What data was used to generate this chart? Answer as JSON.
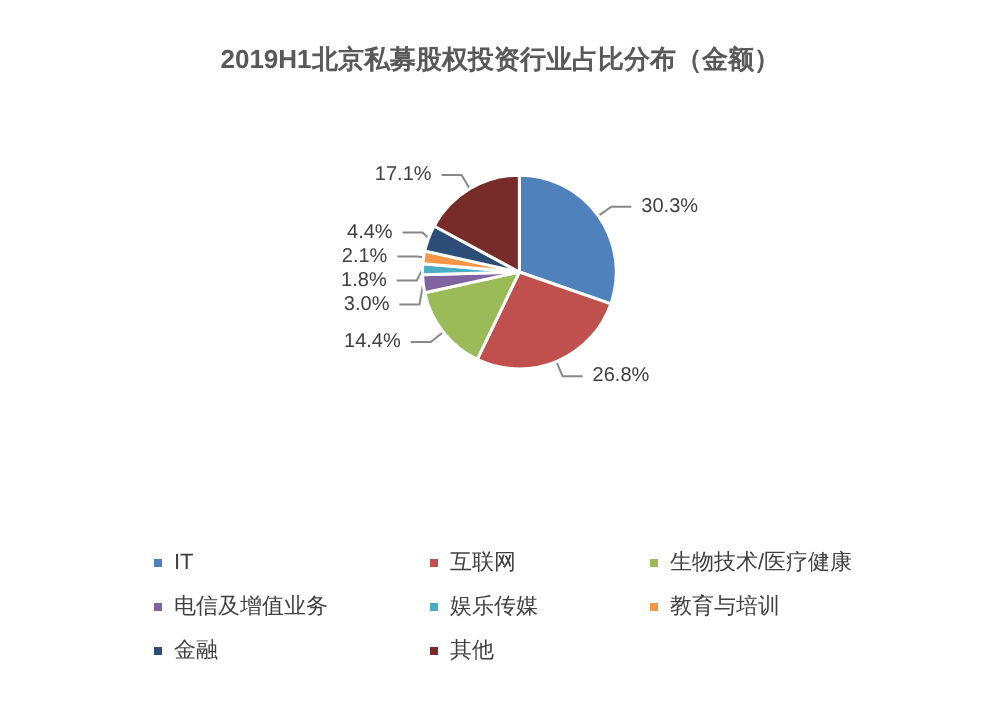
{
  "chart_data": {
    "type": "pie",
    "title": "2019H1北京私募股权投资行业占比分布（金额）",
    "categories": [
      "IT",
      "互联网",
      "生物技术/医疗健康",
      "电信及增值业务",
      "娱乐传媒",
      "教育与培训",
      "金融",
      "其他"
    ],
    "values": [
      30.3,
      26.8,
      14.4,
      3.0,
      1.8,
      2.1,
      4.4,
      17.1
    ],
    "value_labels": [
      "30.3%",
      "26.8%",
      "14.4%",
      "3.0%",
      "1.8%",
      "2.1%",
      "4.4%",
      "17.1%"
    ],
    "colors": [
      "#4f81bd",
      "#c0504d",
      "#9bbb59",
      "#8064a2",
      "#4bacc6",
      "#f79646",
      "#2c4d75",
      "#772c2a"
    ],
    "legend": "bottom"
  }
}
